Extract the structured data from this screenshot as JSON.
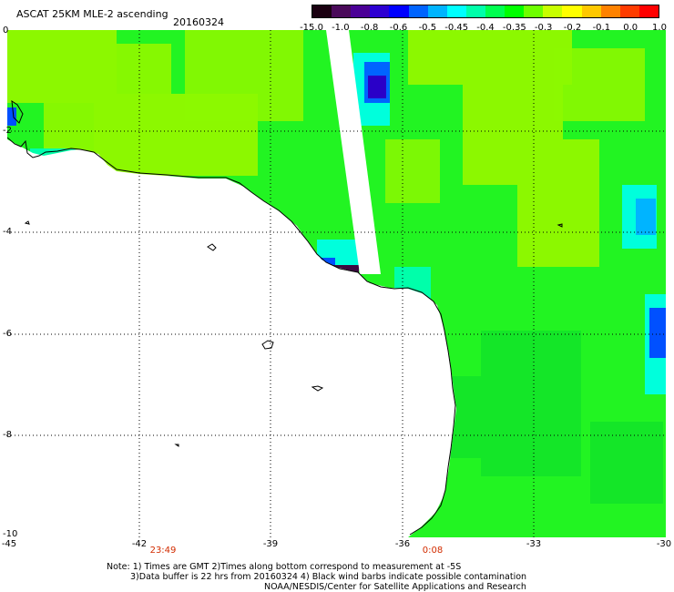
{
  "header": {
    "title": "ASCAT 25KM MLE-2 ascending",
    "date": "20160324"
  },
  "colorbar": {
    "labels": [
      "-15.0",
      "-1.0",
      "-0.8",
      "-0.6",
      "-0.5",
      "-0.45",
      "-0.4",
      "-0.35",
      "-0.3",
      "-0.2",
      "-0.1",
      "0.0",
      "1.0"
    ],
    "colors": [
      "#1a0010",
      "#4a0a5a",
      "#4b0096",
      "#2d00d2",
      "#0000ff",
      "#0064ff",
      "#00b4ff",
      "#00ffff",
      "#00ffaa",
      "#00ff50",
      "#00ff00",
      "#6eff00",
      "#c8ff00",
      "#ffff00",
      "#ffc800",
      "#ff8200",
      "#ff3c00",
      "#ff0000"
    ]
  },
  "map": {
    "latitude_labels": [
      "0",
      "-2",
      "-4",
      "-6",
      "-8",
      "-10"
    ],
    "longitude_labels": [
      "-45",
      "-42",
      "-39",
      "-36",
      "-33",
      "-30"
    ],
    "lat_range": [
      -10,
      0
    ],
    "lon_range": [
      -45,
      -30
    ],
    "grid": "dotted",
    "colors": {
      "land": "#ffffff",
      "field_green": "#22f422",
      "field_lime": "#8cf800",
      "field_cyan": "#00ffdc",
      "field_blue": "#0050ff",
      "field_violet": "#2a00c8",
      "field_dark": "#3c0a40"
    }
  },
  "time_labels": [
    "23:49",
    "0:08"
  ],
  "notes": {
    "line1": "Note: 1) Times are GMT 2)Times along bottom correspond to measurement at -5S",
    "line2": "3)Data buffer is 22 hrs from 20160324 4) Black wind barbs indicate possible contamination",
    "line3": "NOAA/NESDIS/Center for Satellite Applications and Research"
  }
}
